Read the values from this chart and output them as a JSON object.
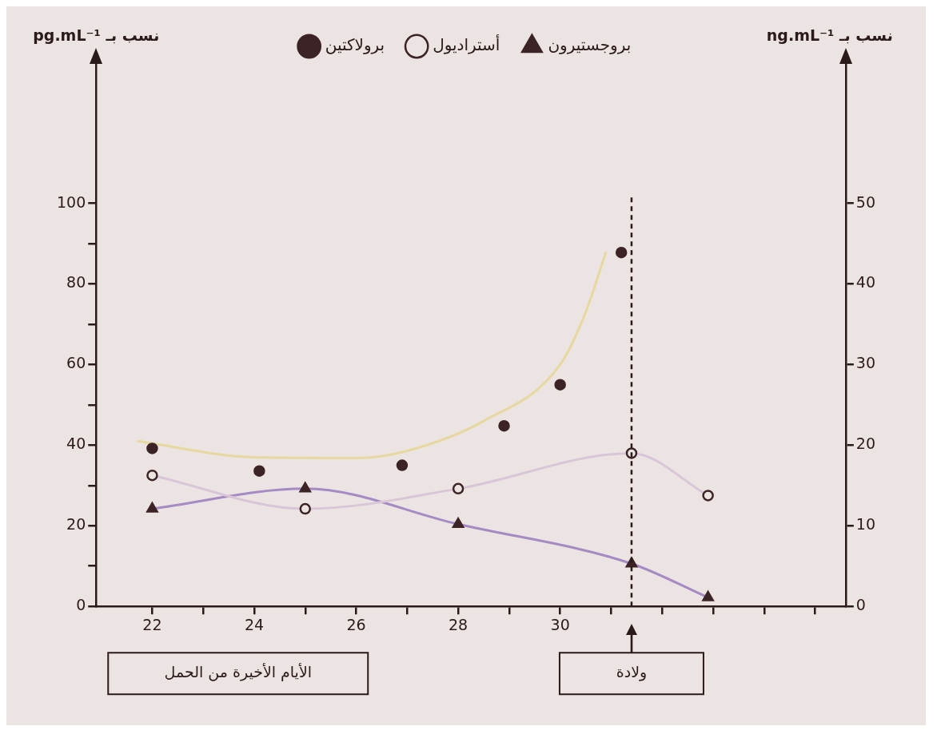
{
  "chart_data": {
    "type": "line",
    "xlim": [
      20.9,
      35.6
    ],
    "xticks": [
      22,
      {
        "value": 23,
        "label": null
      },
      24,
      {
        "value": 25,
        "label": null
      },
      26,
      {
        "value": 27,
        "label": null
      },
      28,
      {
        "value": 29,
        "label": null
      },
      30,
      {
        "value": 31,
        "label": null
      },
      {
        "value": 32,
        "label": null
      },
      {
        "value": 33,
        "label": null
      },
      {
        "value": 34,
        "label": null
      },
      {
        "value": 35,
        "label": null
      }
    ],
    "ylabel": "نسب بـ pg.mL⁻¹",
    "y2label": "نسب بـ ng.mL⁻¹",
    "ylim": [
      0,
      135
    ],
    "yticks": [
      0,
      {
        "value": 10,
        "label": null
      },
      20,
      {
        "value": 30,
        "label": null
      },
      40,
      {
        "value": 50,
        "label": null
      },
      60,
      {
        "value": 70,
        "label": null
      },
      80,
      {
        "value": 90,
        "label": null
      },
      100
    ],
    "y2lim": [
      0,
      67.5
    ],
    "y2ticks": [
      0,
      10,
      20,
      30,
      40,
      50
    ],
    "grid": false,
    "legend": "top",
    "series": [
      {
        "name": "برولاكتين",
        "type": "scatter",
        "axis": "y2",
        "marker": "circle",
        "color": "#3b2326",
        "x": [
          22,
          24.1,
          26.9,
          28.9,
          30,
          31.2
        ],
        "values": [
          19.6,
          16.8,
          17.5,
          22.4,
          27.5,
          43.9
        ]
      },
      {
        "type": "line",
        "axis": "y2",
        "marker": "none",
        "color": "#e6d8a0",
        "x": [
          21.7,
          24,
          26,
          27,
          28.5,
          30,
          30.5,
          30.9
        ],
        "values": [
          20.5,
          18.5,
          18.4,
          19.3,
          23,
          30,
          36.5,
          44
        ]
      },
      {
        "name": "أستراديول",
        "axis": "y",
        "marker": "circle",
        "color": "#d8c6d8",
        "x": [
          22,
          25,
          28,
          31.4,
          32.9
        ],
        "values": [
          32.5,
          24.2,
          29.2,
          38,
          27.5
        ]
      },
      {
        "name": "بروجستيرون",
        "axis": "y2",
        "marker": "triangle",
        "color": "#a68ac4",
        "x": [
          22,
          25,
          28,
          31.4,
          32.9
        ],
        "values": [
          12.1,
          14.6,
          10.2,
          5.3,
          1.1
        ]
      }
    ],
    "ref_lines": [
      {
        "axis": "x",
        "value": 31.4,
        "line_style": "dashed",
        "color": "#2b1a1a"
      }
    ],
    "annotations": [
      "الأيام الأخيرة من الحمل",
      "ولادة"
    ]
  }
}
